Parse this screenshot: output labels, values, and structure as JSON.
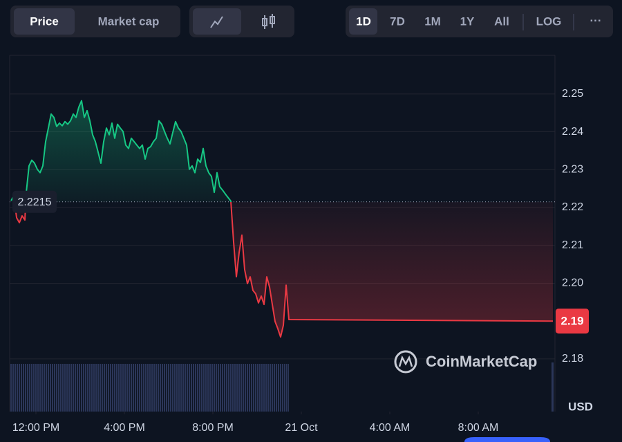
{
  "toolbar": {
    "metric_buttons": [
      "Price",
      "Market cap"
    ],
    "range_buttons": [
      "1D",
      "7D",
      "1M",
      "1Y",
      "All"
    ],
    "scale_button": "LOG",
    "more_button": "···"
  },
  "chart_data": {
    "type": "line",
    "x": [
      -1.125,
      -1.0,
      -0.875,
      -0.75,
      -0.625,
      -0.5,
      -0.4375,
      -0.3125,
      -0.1875,
      -0.0625,
      0.0625,
      0.1875,
      0.3125,
      0.4375,
      0.5625,
      0.6875,
      0.8125,
      0.9375,
      1.0625,
      1.1875,
      1.3125,
      1.4375,
      1.5625,
      1.6875,
      1.8125,
      1.9375,
      2.0625,
      2.1875,
      2.3125,
      2.4375,
      2.5625,
      2.6875,
      2.8125,
      2.9375,
      3.0625,
      3.1875,
      3.3125,
      3.4375,
      3.5625,
      3.6875,
      3.8125,
      3.9375,
      4.0625,
      4.1875,
      4.3125,
      4.4375,
      4.5625,
      4.6875,
      4.8125,
      4.9375,
      5.0625,
      5.1875,
      5.3125,
      5.4375,
      5.5625,
      5.6875,
      5.8125,
      5.9375,
      6.0625,
      6.1875,
      6.3125,
      6.4375,
      6.5625,
      6.6875,
      6.8125,
      6.9375,
      7.0625,
      7.1875,
      7.3125,
      7.4375,
      7.5625,
      7.6875,
      7.8125,
      7.9375,
      8.0625,
      8.1875,
      8.3125,
      8.4375,
      8.625,
      8.8125,
      8.9375,
      9.0625,
      9.1875,
      9.3125,
      9.4375,
      9.5625,
      9.6875,
      9.8125,
      9.9375,
      10.0625,
      10.1875,
      10.3125,
      10.4375,
      10.5625,
      10.6875,
      10.8125,
      10.9375,
      11.0625,
      11.1875,
      11.3125,
      11.4375,
      23.375
    ],
    "values": [
      2.2218,
      2.2231,
      2.2173,
      2.216,
      2.2178,
      2.2167,
      2.224,
      2.231,
      2.2325,
      2.2317,
      2.2301,
      2.2292,
      2.231,
      2.2374,
      2.241,
      2.2447,
      2.2438,
      2.2414,
      2.2423,
      2.2416,
      2.2427,
      2.242,
      2.2429,
      2.2447,
      2.2438,
      2.2465,
      2.2482,
      2.2438,
      2.2456,
      2.2429,
      2.2392,
      2.2374,
      2.2346,
      2.2317,
      2.2374,
      2.241,
      2.2392,
      2.2423,
      2.2383,
      2.242,
      2.241,
      2.2401,
      2.2365,
      2.2356,
      2.2383,
      2.2374,
      2.2365,
      2.2356,
      2.2365,
      2.2328,
      2.2356,
      2.2361,
      2.2374,
      2.2383,
      2.2429,
      2.242,
      2.2401,
      2.2383,
      2.2368,
      2.2398,
      2.2427,
      2.241,
      2.2401,
      2.2383,
      2.2365,
      2.2301,
      2.231,
      2.2292,
      2.2328,
      2.2319,
      2.2356,
      2.231,
      2.2292,
      2.2282,
      2.224,
      2.2292,
      2.2255,
      2.2246,
      2.2231,
      2.2217,
      2.2109,
      2.2017,
      2.2081,
      2.2127,
      2.2036,
      2.1999,
      2.2017,
      2.1981,
      2.1972,
      2.1948,
      2.1966,
      2.1944,
      2.2017,
      2.199,
      2.1944,
      2.1899,
      2.188,
      2.1858,
      2.1889,
      2.1995,
      2.1904,
      2.19
    ],
    "baseline": 2.2215,
    "current_price": 2.19,
    "up_color": "#16c784",
    "down_color": "#ea3943",
    "xlim": [
      -1.1875,
      23.46875
    ],
    "ylim": [
      2.1661,
      2.2602
    ],
    "xticks": [
      {
        "value": 0,
        "label": "12:00 PM"
      },
      {
        "value": 4,
        "label": "4:00 PM"
      },
      {
        "value": 8,
        "label": "8:00 PM"
      },
      {
        "value": 12,
        "label": "21 Oct"
      },
      {
        "value": 16,
        "label": "4:00 AM"
      },
      {
        "value": 20,
        "label": "8:00 AM"
      }
    ],
    "yticks": [
      2.18,
      {
        "value": 2.2,
        "label": "2.20"
      },
      2.21,
      2.22,
      2.23,
      2.24,
      2.25
    ],
    "grid": true,
    "currency": "USD",
    "watermark": "CoinMarketCap"
  }
}
